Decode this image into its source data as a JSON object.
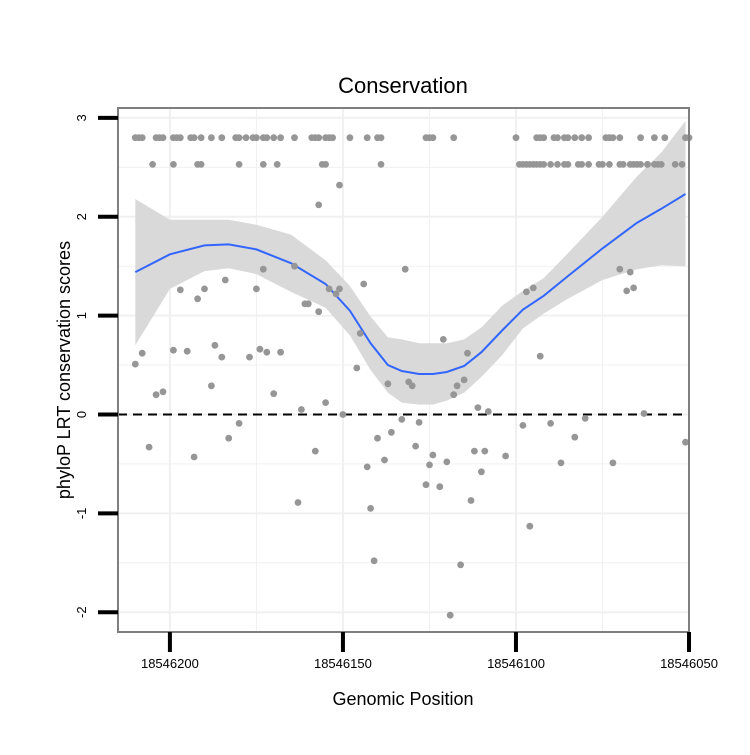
{
  "chart_data": {
    "type": "scatter",
    "title": "Conservation",
    "xlabel": "Genomic Position",
    "ylabel": "phyloP LRT conservation scores",
    "x_reversed": true,
    "xlim": [
      18546050,
      18546215
    ],
    "ylim": [
      -2.2,
      3.1
    ],
    "x_ticks": [
      18546200,
      18546150,
      18546100,
      18546050
    ],
    "x_tick_labels": [
      "18546200",
      "18546150",
      "18546100",
      "18546050"
    ],
    "y_ticks": [
      -2,
      -1,
      0,
      1,
      2,
      3
    ],
    "y_tick_labels": [
      "-2",
      "-1",
      "0",
      "1",
      "2",
      "3"
    ],
    "reference_line": {
      "y": 0,
      "style": "dashed"
    },
    "colors": {
      "points": "#969696",
      "smooth": "#3366ff",
      "ribbon": "#d9d9d9",
      "panel_border": "#7f7f7f",
      "grid": "#f0f0f0"
    },
    "series": [
      {
        "name": "points",
        "kind": "scatter",
        "points": [
          [
            18546210,
            2.8
          ],
          [
            18546209,
            2.8
          ],
          [
            18546208,
            2.8
          ],
          [
            18546204,
            2.8
          ],
          [
            18546203,
            2.8
          ],
          [
            18546202,
            2.8
          ],
          [
            18546199,
            2.8
          ],
          [
            18546198,
            2.8
          ],
          [
            18546197,
            2.8
          ],
          [
            18546194,
            2.8
          ],
          [
            18546193,
            2.8
          ],
          [
            18546191,
            2.8
          ],
          [
            18546188,
            2.8
          ],
          [
            18546185,
            2.8
          ],
          [
            18546181,
            2.8
          ],
          [
            18546180,
            2.8
          ],
          [
            18546178,
            2.8
          ],
          [
            18546176,
            2.8
          ],
          [
            18546175,
            2.8
          ],
          [
            18546173,
            2.8
          ],
          [
            18546172,
            2.8
          ],
          [
            18546170,
            2.8
          ],
          [
            18546168,
            2.8
          ],
          [
            18546164,
            2.8
          ],
          [
            18546159,
            2.8
          ],
          [
            18546158,
            2.8
          ],
          [
            18546157,
            2.8
          ],
          [
            18546155,
            2.8
          ],
          [
            18546154,
            2.8
          ],
          [
            18546153,
            2.8
          ],
          [
            18546148,
            2.8
          ],
          [
            18546143,
            2.8
          ],
          [
            18546140,
            2.8
          ],
          [
            18546139,
            2.8
          ],
          [
            18546126,
            2.8
          ],
          [
            18546125,
            2.8
          ],
          [
            18546124,
            2.8
          ],
          [
            18546118,
            2.8
          ],
          [
            18546100,
            2.8
          ],
          [
            18546094,
            2.8
          ],
          [
            18546093,
            2.8
          ],
          [
            18546092,
            2.8
          ],
          [
            18546089,
            2.8
          ],
          [
            18546088,
            2.8
          ],
          [
            18546086,
            2.8
          ],
          [
            18546085,
            2.8
          ],
          [
            18546083,
            2.8
          ],
          [
            18546081,
            2.8
          ],
          [
            18546079,
            2.8
          ],
          [
            18546074,
            2.8
          ],
          [
            18546073,
            2.8
          ],
          [
            18546072,
            2.8
          ],
          [
            18546070,
            2.8
          ],
          [
            18546064,
            2.8
          ],
          [
            18546060,
            2.8
          ],
          [
            18546057,
            2.8
          ],
          [
            18546051,
            2.8
          ],
          [
            18546050,
            2.8
          ],
          [
            18546205,
            2.53
          ],
          [
            18546199,
            2.53
          ],
          [
            18546192,
            2.53
          ],
          [
            18546191,
            2.53
          ],
          [
            18546180,
            2.53
          ],
          [
            18546173,
            2.53
          ],
          [
            18546169,
            2.53
          ],
          [
            18546156,
            2.53
          ],
          [
            18546155,
            2.53
          ],
          [
            18546139,
            2.53
          ],
          [
            18546099,
            2.53
          ],
          [
            18546098,
            2.53
          ],
          [
            18546097,
            2.53
          ],
          [
            18546096,
            2.53
          ],
          [
            18546095,
            2.53
          ],
          [
            18546094,
            2.53
          ],
          [
            18546093,
            2.53
          ],
          [
            18546092,
            2.53
          ],
          [
            18546090,
            2.53
          ],
          [
            18546088,
            2.53
          ],
          [
            18546086,
            2.53
          ],
          [
            18546085,
            2.53
          ],
          [
            18546082,
            2.53
          ],
          [
            18546081,
            2.53
          ],
          [
            18546079,
            2.53
          ],
          [
            18546076,
            2.53
          ],
          [
            18546075,
            2.53
          ],
          [
            18546073,
            2.53
          ],
          [
            18546070,
            2.53
          ],
          [
            18546069,
            2.53
          ],
          [
            18546067,
            2.53
          ],
          [
            18546066,
            2.53
          ],
          [
            18546065,
            2.53
          ],
          [
            18546064,
            2.53
          ],
          [
            18546062,
            2.53
          ],
          [
            18546060,
            2.53
          ],
          [
            18546059,
            2.53
          ],
          [
            18546058,
            2.53
          ],
          [
            18546054,
            2.53
          ],
          [
            18546052,
            2.53
          ],
          [
            18546151,
            2.32
          ],
          [
            18546157,
            2.12
          ],
          [
            18546204,
            0.2
          ],
          [
            18546210,
            0.51
          ],
          [
            18546208,
            0.62
          ],
          [
            18546206,
            -0.33
          ],
          [
            18546202,
            0.23
          ],
          [
            18546199,
            0.65
          ],
          [
            18546197,
            1.26
          ],
          [
            18546195,
            0.64
          ],
          [
            18546193,
            -0.43
          ],
          [
            18546192,
            1.17
          ],
          [
            18546190,
            1.27
          ],
          [
            18546188,
            0.29
          ],
          [
            18546187,
            0.7
          ],
          [
            18546185,
            0.58
          ],
          [
            18546184,
            1.36
          ],
          [
            18546183,
            -0.24
          ],
          [
            18546180,
            -0.09
          ],
          [
            18546177,
            0.58
          ],
          [
            18546175,
            1.27
          ],
          [
            18546174,
            0.66
          ],
          [
            18546173,
            1.47
          ],
          [
            18546172,
            0.63
          ],
          [
            18546170,
            0.21
          ],
          [
            18546168,
            0.63
          ],
          [
            18546164,
            1.5
          ],
          [
            18546163,
            -0.89
          ],
          [
            18546162,
            0.05
          ],
          [
            18546161,
            1.12
          ],
          [
            18546160,
            1.12
          ],
          [
            18546158,
            -0.37
          ],
          [
            18546157,
            1.04
          ],
          [
            18546155,
            0.12
          ],
          [
            18546154,
            1.27
          ],
          [
            18546152,
            1.22
          ],
          [
            18546151,
            1.27
          ],
          [
            18546150,
            0.0
          ],
          [
            18546146,
            0.47
          ],
          [
            18546145,
            0.82
          ],
          [
            18546144,
            1.32
          ],
          [
            18546143,
            -0.53
          ],
          [
            18546142,
            -0.95
          ],
          [
            18546141,
            -1.48
          ],
          [
            18546140,
            -0.24
          ],
          [
            18546138,
            -0.46
          ],
          [
            18546137,
            0.31
          ],
          [
            18546136,
            -0.18
          ],
          [
            18546133,
            -0.05
          ],
          [
            18546132,
            1.47
          ],
          [
            18546131,
            0.33
          ],
          [
            18546130,
            0.29
          ],
          [
            18546129,
            -0.32
          ],
          [
            18546128,
            -0.08
          ],
          [
            18546126,
            -0.71
          ],
          [
            18546125,
            -0.51
          ],
          [
            18546124,
            -0.41
          ],
          [
            18546122,
            -0.73
          ],
          [
            18546121,
            0.76
          ],
          [
            18546120,
            -0.48
          ],
          [
            18546119,
            -2.03
          ],
          [
            18546118,
            0.2
          ],
          [
            18546117,
            0.29
          ],
          [
            18546116,
            -1.52
          ],
          [
            18546115,
            0.35
          ],
          [
            18546114,
            0.62
          ],
          [
            18546113,
            -0.87
          ],
          [
            18546112,
            -0.37
          ],
          [
            18546111,
            0.07
          ],
          [
            18546110,
            -0.58
          ],
          [
            18546109,
            -0.37
          ],
          [
            18546108,
            0.03
          ],
          [
            18546103,
            -0.42
          ],
          [
            18546098,
            -0.11
          ],
          [
            18546097,
            1.24
          ],
          [
            18546096,
            -1.13
          ],
          [
            18546095,
            1.28
          ],
          [
            18546093,
            0.59
          ],
          [
            18546090,
            -0.09
          ],
          [
            18546087,
            -0.49
          ],
          [
            18546083,
            -0.23
          ],
          [
            18546080,
            -0.04
          ],
          [
            18546072,
            -0.49
          ],
          [
            18546070,
            1.47
          ],
          [
            18546068,
            1.25
          ],
          [
            18546067,
            1.44
          ],
          [
            18546066,
            1.28
          ],
          [
            18546063,
            0.01
          ],
          [
            18546062,
            2.53
          ],
          [
            18546051,
            -0.28
          ]
        ]
      },
      {
        "name": "smooth",
        "kind": "line",
        "x": [
          18546210,
          18546200,
          18546190,
          18546183,
          18546175,
          18546165,
          18546155,
          18546148,
          18546142,
          18546137,
          18546133,
          18546128,
          18546124,
          18546120,
          18546115,
          18546110,
          18546104,
          18546098,
          18546092,
          18546085,
          18546075,
          18546065,
          18546058,
          18546051
        ],
        "y": [
          1.44,
          1.62,
          1.71,
          1.72,
          1.67,
          1.53,
          1.32,
          1.05,
          0.72,
          0.5,
          0.44,
          0.41,
          0.41,
          0.43,
          0.49,
          0.63,
          0.85,
          1.06,
          1.2,
          1.4,
          1.68,
          1.94,
          2.08,
          2.23
        ]
      },
      {
        "name": "confidence band",
        "kind": "ribbon",
        "x": [
          18546210,
          18546200,
          18546190,
          18546183,
          18546175,
          18546165,
          18546155,
          18546148,
          18546142,
          18546137,
          18546133,
          18546128,
          18546124,
          18546120,
          18546115,
          18546110,
          18546104,
          18546098,
          18546092,
          18546085,
          18546075,
          18546065,
          18546058,
          18546051
        ],
        "ymin": [
          0.7,
          1.27,
          1.45,
          1.48,
          1.42,
          1.24,
          1.08,
          0.8,
          0.45,
          0.22,
          0.12,
          0.1,
          0.1,
          0.14,
          0.22,
          0.38,
          0.6,
          0.87,
          1.02,
          1.17,
          1.36,
          1.47,
          1.51,
          1.5
        ],
        "ymax": [
          2.18,
          1.97,
          1.97,
          1.97,
          1.92,
          1.82,
          1.56,
          1.3,
          0.99,
          0.78,
          0.76,
          0.72,
          0.72,
          0.72,
          0.76,
          0.88,
          1.1,
          1.25,
          1.38,
          1.63,
          2.0,
          2.41,
          2.65,
          2.97
        ]
      }
    ]
  }
}
